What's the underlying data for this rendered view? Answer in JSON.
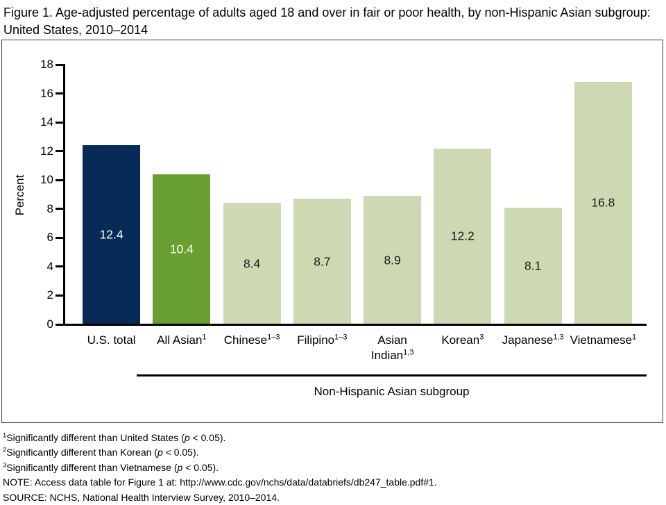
{
  "title": {
    "line1": "Figure 1. Age-adjusted percentage of adults aged 18 and over in fair or poor health, by non-Hispanic Asian subgroup:",
    "line2": "United States, 2010–2014"
  },
  "chart_data": {
    "type": "bar",
    "title": "Figure 1. Age-adjusted percentage of adults aged 18 and over in fair or poor health, by non-Hispanic Asian subgroup: United States, 2010–2014",
    "ylabel": "Percent",
    "xlabel": "Non-Hispanic Asian subgroup",
    "ylim": [
      0,
      18
    ],
    "ytick_step": 2,
    "grid": false,
    "categories": [
      {
        "name": "U.S. total",
        "sup": ""
      },
      {
        "name": "All Asian",
        "sup": "1"
      },
      {
        "name": "Chinese",
        "sup": "1–3"
      },
      {
        "name": "Filipino",
        "sup": "1–3"
      },
      {
        "name": "Asian Indian",
        "sup": "1,3"
      },
      {
        "name": "Korean",
        "sup": "3"
      },
      {
        "name": "Japanese",
        "sup": "1,3"
      },
      {
        "name": "Vietnamese",
        "sup": "1"
      }
    ],
    "values": [
      12.4,
      10.4,
      8.4,
      8.7,
      8.9,
      12.2,
      8.1,
      16.8
    ],
    "bar_colors": [
      "#072a56",
      "#699e31",
      "#cdd9b2",
      "#cdd9b2",
      "#cdd9b2",
      "#cdd9b2",
      "#cdd9b2",
      "#cdd9b2"
    ],
    "value_label_colors": [
      "#ffffff",
      "#ffffff",
      "#1a1a1a",
      "#1a1a1a",
      "#1a1a1a",
      "#1a1a1a",
      "#1a1a1a",
      "#1a1a1a"
    ],
    "subgroup_bracket_categories": [
      "All Asian",
      "Vietnamese"
    ]
  },
  "footnotes": [
    {
      "sup": "1",
      "text": "Significantly different than United States (p < 0.05)."
    },
    {
      "sup": "2",
      "text": "Significantly different than Korean (p < 0.05)."
    },
    {
      "sup": "3",
      "text": "Significantly different than Vietnamese (p < 0.05)."
    },
    {
      "sup": "",
      "text": "NOTE: Access data table for Figure 1 at: http://www.cdc.gov/nchs/data/databriefs/db247_table.pdf#1."
    },
    {
      "sup": "",
      "text": "SOURCE: NCHS, National Health Interview Survey, 2010–2014."
    }
  ]
}
